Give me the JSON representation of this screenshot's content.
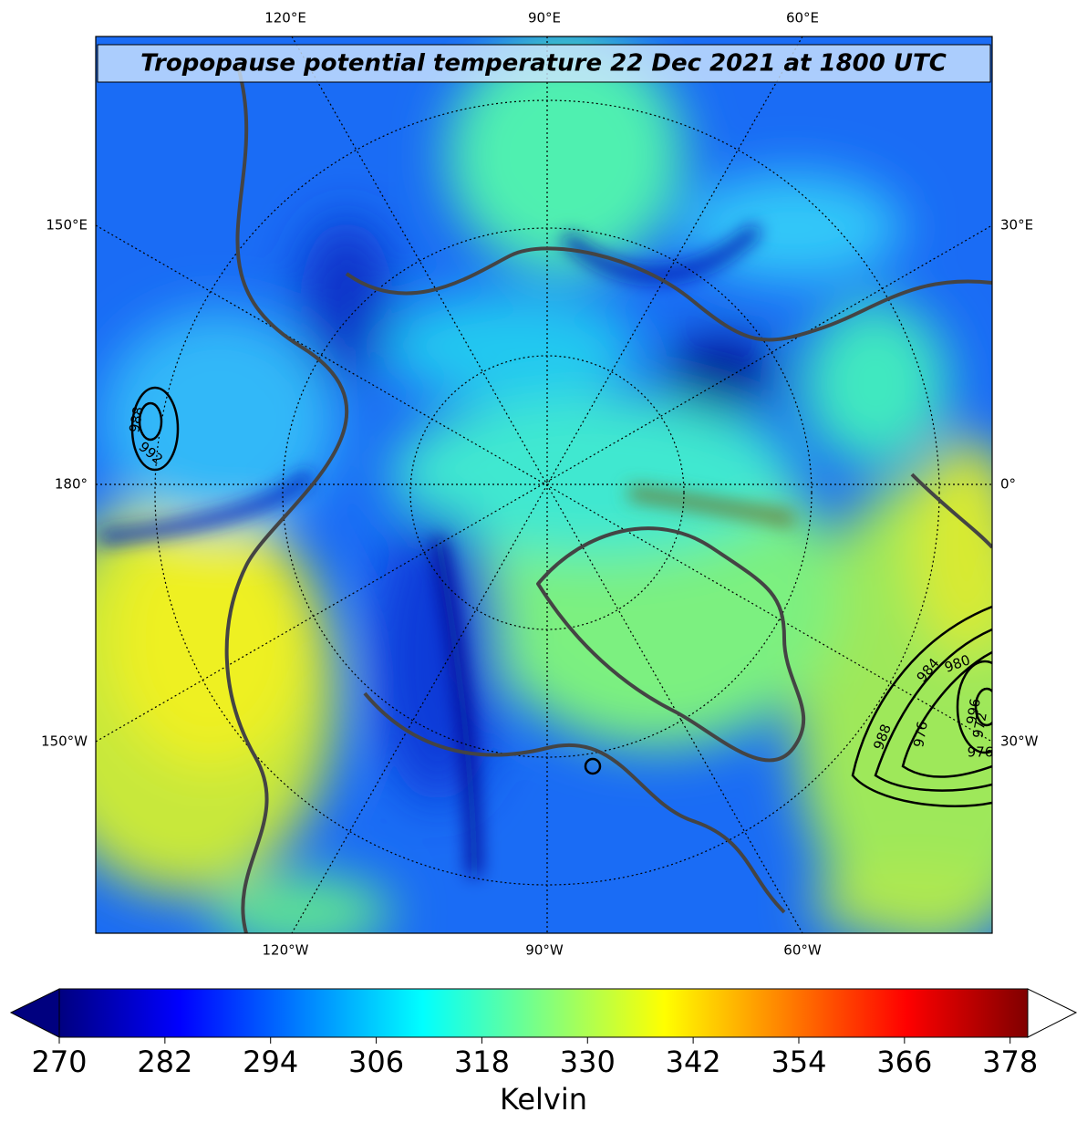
{
  "title": "Tropopause potential temperature 22 Dec 2021 at 1800 UTC",
  "map": {
    "top_labels": [
      "120°E",
      "90°E",
      "60°E"
    ],
    "bottom_labels": [
      "120°W",
      "90°W",
      "60°W"
    ],
    "left_labels": [
      "150°E",
      "180°",
      "150°W"
    ],
    "right_labels": [
      "30°E",
      "0°",
      "30°W"
    ],
    "contour_labels": [
      "988",
      "992",
      "984",
      "980",
      "976",
      "988",
      "996",
      "972",
      "976"
    ]
  },
  "colorbar": {
    "label": "Kelvin",
    "cmap": "jet",
    "lim": [
      270,
      380
    ],
    "ticks": [
      270,
      282,
      294,
      306,
      318,
      330,
      342,
      354,
      366,
      378
    ]
  }
}
